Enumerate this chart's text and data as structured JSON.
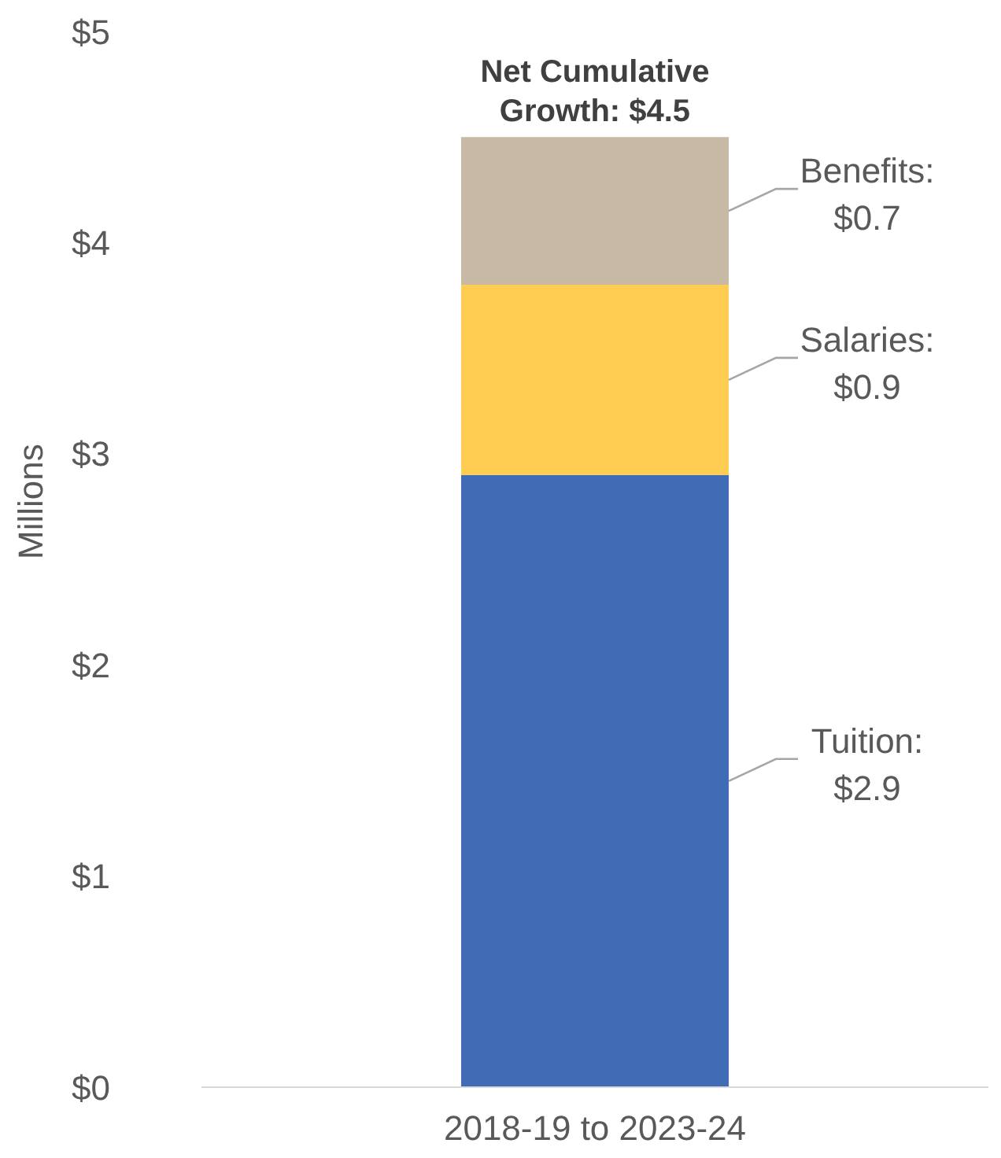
{
  "chart_data": {
    "type": "bar",
    "stacked": true,
    "ylabel": "Millions",
    "categories": [
      "2018-19 to 2023-24"
    ],
    "series": [
      {
        "name": "Tuition:",
        "color": "#3f6cb5",
        "values": [
          2.9
        ],
        "value_labels": [
          "$2.9"
        ]
      },
      {
        "name": "Salaries:",
        "color": "#ffcd52",
        "values": [
          0.9
        ],
        "value_labels": [
          "$0.9"
        ]
      },
      {
        "name": "Benefits:",
        "color": "#c7b9a3",
        "values": [
          0.7
        ],
        "value_labels": [
          "$0.7"
        ]
      }
    ],
    "totals": [
      "Net Cumulative Growth:  $4.5"
    ],
    "ylim": [
      0,
      5
    ],
    "yticks": [
      {
        "value": 0,
        "label": "$0"
      },
      {
        "value": 1,
        "label": "$1"
      },
      {
        "value": 2,
        "label": "$2"
      },
      {
        "value": 3,
        "label": "$3"
      },
      {
        "value": 4,
        "label": "$4"
      },
      {
        "value": 5,
        "label": "$5"
      }
    ],
    "grid": false,
    "legend": false
  }
}
